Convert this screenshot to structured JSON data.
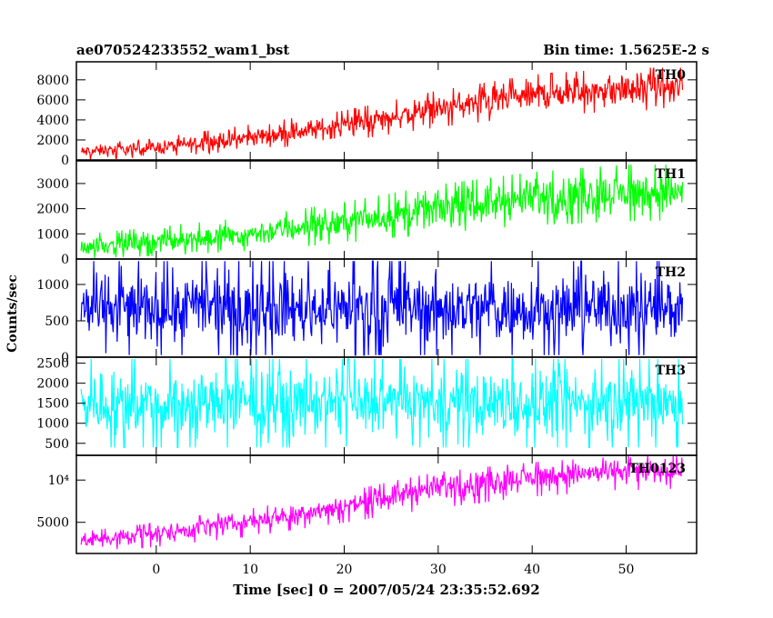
{
  "header": {
    "left": "ae070524233552_wam1_bst",
    "right": "Bin time: 1.5625E-2 s"
  },
  "ylabel": "Counts/sec",
  "xlabel": "Time [sec] 0 = 2007/05/24 23:35:52.692",
  "chart_data": {
    "type": "line",
    "x_range": [
      -8.5,
      57.5
    ],
    "x_ticks": [
      0,
      10,
      20,
      30,
      40,
      50
    ],
    "x_tick_labels": [
      "0",
      "10",
      "20",
      "30",
      "40",
      "50"
    ],
    "data_x_range": [
      -8,
      56
    ],
    "panels": [
      {
        "name": "TH0",
        "color": "#ff0000",
        "ylim": [
          0,
          9800
        ],
        "y_ticks": [
          0,
          2000,
          4000,
          6000,
          8000
        ],
        "y_tick_labels": [
          "0",
          "2000",
          "4000",
          "6000",
          "8000"
        ],
        "envelope": {
          "x": [
            -8,
            0,
            10,
            20,
            30,
            40,
            50,
            56
          ],
          "low": [
            0,
            250,
            900,
            1800,
            3200,
            4300,
            4800,
            5000
          ],
          "high": [
            1600,
            2200,
            3600,
            5000,
            7000,
            8600,
            9300,
            9300
          ]
        }
      },
      {
        "name": "TH1",
        "color": "#00ff00",
        "ylim": [
          0,
          3900
        ],
        "y_ticks": [
          0,
          1000,
          2000,
          3000
        ],
        "y_tick_labels": [
          "0",
          "1000",
          "2000",
          "3000"
        ],
        "envelope": {
          "x": [
            -8,
            0,
            10,
            20,
            30,
            40,
            50,
            56
          ],
          "low": [
            0,
            100,
            300,
            600,
            1000,
            1300,
            1450,
            1500
          ],
          "high": [
            1000,
            1300,
            1700,
            2300,
            3000,
            3500,
            3800,
            3800
          ]
        }
      },
      {
        "name": "TH2",
        "color": "#0000ff",
        "ylim": [
          0,
          1350
        ],
        "y_ticks": [
          0,
          500,
          1000
        ],
        "y_tick_labels": [
          "0",
          "500",
          "1000"
        ],
        "envelope": {
          "x": [
            -8,
            56
          ],
          "low": [
            0,
            0
          ],
          "high": [
            1350,
            1350
          ]
        }
      },
      {
        "name": "TH3",
        "color": "#00ffff",
        "ylim": [
          200,
          2650
        ],
        "y_ticks": [
          500,
          1000,
          1500,
          2000,
          2500
        ],
        "y_tick_labels": [
          "500",
          "1000",
          "1500",
          "2000",
          "2500"
        ],
        "envelope": {
          "x": [
            -8,
            56
          ],
          "low": [
            350,
            350
          ],
          "high": [
            2650,
            2650
          ]
        }
      },
      {
        "name": "TH0123",
        "color": "#ff00ff",
        "ylim": [
          3000,
          15000
        ],
        "y_scale": "log",
        "y_ticks": [
          5000,
          10000
        ],
        "y_tick_labels": [
          "5000",
          "10⁴"
        ],
        "envelope": {
          "x": [
            -8,
            0,
            10,
            20,
            30,
            40,
            50,
            56
          ],
          "low": [
            3100,
            3300,
            3900,
            4900,
            6200,
            7500,
            8300,
            8600
          ],
          "high": [
            4300,
            5000,
            6300,
            8200,
            11500,
            13500,
            15000,
            15000
          ]
        }
      }
    ]
  }
}
